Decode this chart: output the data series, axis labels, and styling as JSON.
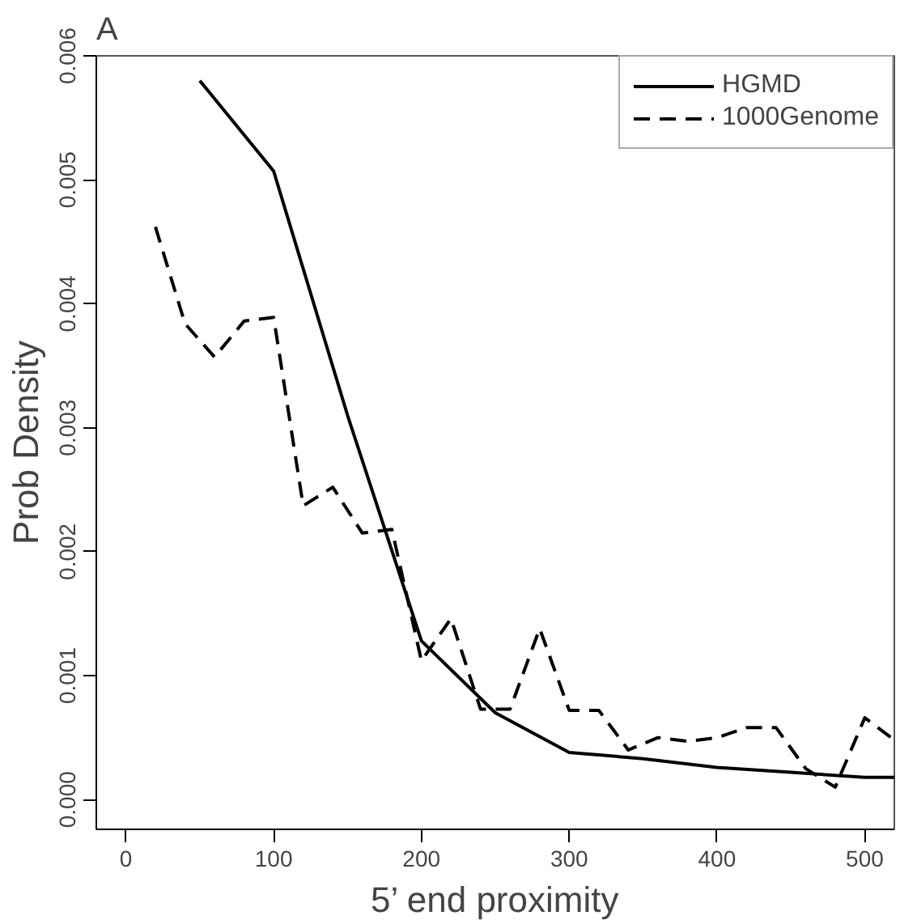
{
  "chart_data": {
    "type": "line",
    "title": "A",
    "xlabel": "5’ end proximity",
    "ylabel": "Prob Density",
    "xlim": [
      -20,
      520
    ],
    "ylim": [
      -0.00024,
      0.006
    ],
    "xticks": [
      0,
      100,
      200,
      300,
      400,
      500
    ],
    "yticks": [
      {
        "value": 0,
        "label": "0.000"
      },
      {
        "value": 0.001,
        "label": "0.001"
      },
      {
        "value": 0.002,
        "label": "0.002"
      },
      {
        "value": 0.003,
        "label": "0.003"
      },
      {
        "value": 0.004,
        "label": "0.004"
      },
      {
        "value": 0.005,
        "label": "0.005"
      },
      {
        "value": 0.006,
        "label": "0.006"
      }
    ],
    "grid": false,
    "legend": "top right",
    "series": [
      {
        "name": "HGMD",
        "color": "#000000",
        "line_style": "solid",
        "x": [
          50,
          100,
          150,
          200,
          250,
          300,
          350,
          400,
          450,
          500,
          520
        ],
        "values": [
          0.0058,
          0.00507,
          0.0031,
          0.00128,
          0.0007,
          0.00038,
          0.00033,
          0.00026,
          0.00022,
          0.00018,
          0.00018
        ]
      },
      {
        "name": "1000Genome",
        "color": "#000000",
        "line_style": "dashed",
        "x": [
          20,
          40,
          60,
          80,
          100,
          120,
          140,
          160,
          180,
          200,
          220,
          240,
          260,
          280,
          300,
          320,
          340,
          360,
          380,
          400,
          420,
          440,
          460,
          480,
          500,
          520
        ],
        "values": [
          0.00462,
          0.00384,
          0.00357,
          0.00386,
          0.00389,
          0.00237,
          0.00252,
          0.00215,
          0.00218,
          0.00112,
          0.00146,
          0.00073,
          0.00073,
          0.00138,
          0.00072,
          0.00072,
          0.0004,
          0.0005,
          0.00047,
          0.0005,
          0.00058,
          0.00058,
          0.00025,
          0.0001,
          0.00066,
          0.00048
        ]
      }
    ]
  }
}
